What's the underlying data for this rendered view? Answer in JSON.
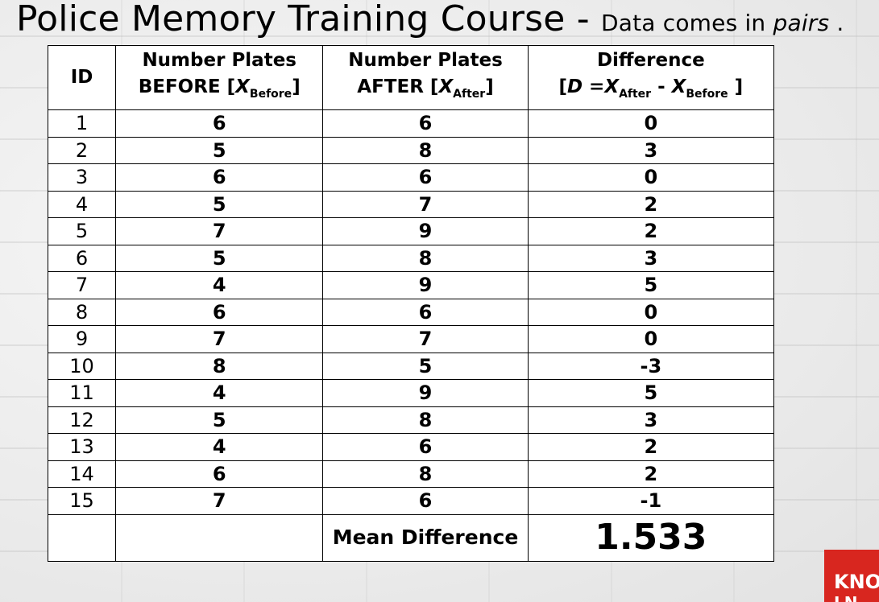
{
  "title": {
    "main": "Police Memory Training Course - ",
    "sub_prefix": "Data comes in ",
    "sub_emph": "pairs",
    "sub_suffix": " ."
  },
  "table": {
    "headers": {
      "id": "ID",
      "before_line1": "Number Plates",
      "before_line2_prefix": "BEFORE [",
      "before_var": "X",
      "before_sub": "Before",
      "before_close": "]",
      "after_line1": "Number Plates",
      "after_line2_prefix": "AFTER [",
      "after_var": "X",
      "after_sub": "After",
      "after_close": "]",
      "diff_line1": "Difference",
      "diff_open": "[",
      "diff_var_d": "D",
      "diff_eq": " =",
      "diff_var_x1": "X",
      "diff_sub1": "After",
      "diff_minus": " - ",
      "diff_var_x2": "X",
      "diff_sub2": "Before",
      "diff_close": " ]"
    },
    "rows": [
      {
        "id": "1",
        "before": "6",
        "after": "6",
        "diff": "0"
      },
      {
        "id": "2",
        "before": "5",
        "after": "8",
        "diff": "3"
      },
      {
        "id": "3",
        "before": "6",
        "after": "6",
        "diff": "0"
      },
      {
        "id": "4",
        "before": "5",
        "after": "7",
        "diff": "2"
      },
      {
        "id": "5",
        "before": "7",
        "after": "9",
        "diff": "2"
      },
      {
        "id": "6",
        "before": "5",
        "after": "8",
        "diff": "3"
      },
      {
        "id": "7",
        "before": "4",
        "after": "9",
        "diff": "5"
      },
      {
        "id": "8",
        "before": "6",
        "after": "6",
        "diff": "0"
      },
      {
        "id": "9",
        "before": "7",
        "after": "7",
        "diff": "0"
      },
      {
        "id": "10",
        "before": "8",
        "after": "5",
        "diff": "-3"
      },
      {
        "id": "11",
        "before": "4",
        "after": "9",
        "diff": "5"
      },
      {
        "id": "12",
        "before": "5",
        "after": "8",
        "diff": "3"
      },
      {
        "id": "13",
        "before": "4",
        "after": "6",
        "diff": "2"
      },
      {
        "id": "14",
        "before": "6",
        "after": "8",
        "diff": "2"
      },
      {
        "id": "15",
        "before": "7",
        "after": "6",
        "diff": "-1"
      }
    ],
    "mean_label": "Mean Difference",
    "mean_value": "1.533"
  },
  "logo": {
    "line1": "KNO",
    "line2": "LN",
    "color": "#d8261f"
  }
}
